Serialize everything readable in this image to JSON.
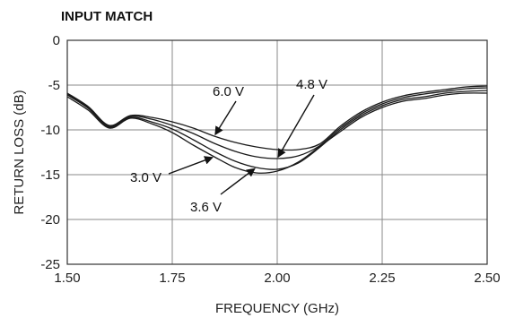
{
  "chart_data": {
    "type": "line",
    "title": "INPUT MATCH",
    "xlabel": "FREQUENCY (GHz)",
    "ylabel": "RETURN LOSS (dB)",
    "xlim": [
      1.5,
      2.5
    ],
    "ylim": [
      -25,
      0
    ],
    "xticks": [
      "1.50",
      "1.75",
      "2.00",
      "2.25",
      "2.50"
    ],
    "yticks": [
      "0",
      "-5",
      "-10",
      "-15",
      "-20",
      "-25"
    ],
    "grid": true,
    "series": [
      {
        "name": "3.0 V",
        "x": [
          1.5,
          1.55,
          1.6,
          1.65,
          1.7,
          1.75,
          1.8,
          1.85,
          1.9,
          1.95,
          2.0,
          2.05,
          2.1,
          2.15,
          2.2,
          2.25,
          2.3,
          2.35,
          2.4,
          2.45,
          2.5
        ],
        "y": [
          -6.3,
          -7.8,
          -9.8,
          -8.7,
          -9.3,
          -10.3,
          -11.7,
          -13.0,
          -14.2,
          -14.8,
          -14.6,
          -13.6,
          -11.9,
          -10.2,
          -8.6,
          -7.5,
          -6.8,
          -6.5,
          -6.1,
          -5.9,
          -5.9
        ]
      },
      {
        "name": "3.6 V",
        "x": [
          1.5,
          1.55,
          1.6,
          1.65,
          1.7,
          1.75,
          1.8,
          1.85,
          1.9,
          1.95,
          2.0,
          2.05,
          2.1,
          2.15,
          2.2,
          2.25,
          2.3,
          2.35,
          2.4,
          2.45,
          2.5
        ],
        "y": [
          -6.1,
          -7.6,
          -9.7,
          -8.6,
          -9.1,
          -9.9,
          -11.1,
          -12.4,
          -13.5,
          -14.2,
          -14.4,
          -13.7,
          -12.0,
          -10.0,
          -8.4,
          -7.3,
          -6.6,
          -6.3,
          -5.9,
          -5.7,
          -5.6
        ]
      },
      {
        "name": "4.8 V",
        "x": [
          1.5,
          1.55,
          1.6,
          1.65,
          1.7,
          1.75,
          1.8,
          1.85,
          1.9,
          1.95,
          2.0,
          2.05,
          2.1,
          2.15,
          2.2,
          2.25,
          2.3,
          2.35,
          2.4,
          2.45,
          2.5
        ],
        "y": [
          -6.0,
          -7.5,
          -9.6,
          -8.5,
          -8.8,
          -9.5,
          -10.4,
          -11.5,
          -12.4,
          -13.0,
          -13.2,
          -12.9,
          -11.8,
          -9.8,
          -8.2,
          -7.1,
          -6.4,
          -6.0,
          -5.7,
          -5.4,
          -5.3
        ]
      },
      {
        "name": "6.0 V",
        "x": [
          1.5,
          1.55,
          1.6,
          1.65,
          1.7,
          1.75,
          1.8,
          1.85,
          1.9,
          1.95,
          2.0,
          2.05,
          2.1,
          2.15,
          2.2,
          2.25,
          2.3,
          2.35,
          2.4,
          2.45,
          2.5
        ],
        "y": [
          -5.9,
          -7.4,
          -9.5,
          -8.4,
          -8.6,
          -9.1,
          -9.8,
          -10.7,
          -11.4,
          -11.9,
          -12.2,
          -12.2,
          -11.6,
          -9.6,
          -8.0,
          -6.9,
          -6.2,
          -5.8,
          -5.5,
          -5.2,
          -5.1
        ]
      }
    ],
    "annotations": [
      {
        "text": "6.0 V",
        "series": "6.0 V",
        "target": [
          1.85,
          -10.7
        ]
      },
      {
        "text": "4.8 V",
        "series": "4.8 V",
        "target": [
          2.0,
          -13.2
        ]
      },
      {
        "text": "3.0 V",
        "series": "3.0 V",
        "target": [
          1.85,
          -13.0
        ]
      },
      {
        "text": "3.6 V",
        "series": "3.6 V",
        "target": [
          1.95,
          -14.2
        ]
      }
    ]
  }
}
